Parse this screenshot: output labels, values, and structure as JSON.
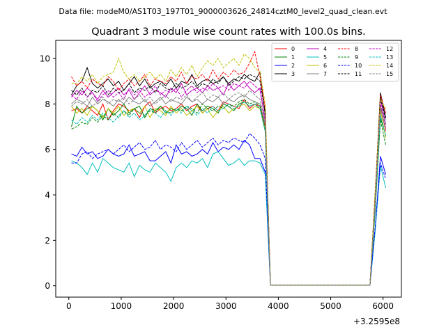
{
  "header": {
    "data_file": "Data file: modeM0/AS1T03_197T01_9000003626_24814cztM0_level2_quad_clean.evt"
  },
  "chart_data": {
    "type": "line",
    "title": "Quadrant 3 module wise count rates with 100.0s bins.",
    "xlabel": "",
    "ylabel": "",
    "x_offset_label": "+3.2595e8",
    "xlim": [
      -250,
      6350
    ],
    "ylim": [
      -0.5,
      10.8
    ],
    "x_ticks": [
      0,
      1000,
      2000,
      3000,
      4000,
      5000,
      6000
    ],
    "x_tick_labels": [
      "0",
      "1000",
      "2000",
      "3000",
      "4000",
      "5000",
      "6000"
    ],
    "y_ticks": [
      0,
      2,
      4,
      6,
      8,
      10
    ],
    "y_tick_labels": [
      "0",
      "2",
      "4",
      "6",
      "8",
      "10"
    ],
    "legend_position": "top-right",
    "x": [
      50,
      150,
      250,
      350,
      450,
      550,
      650,
      750,
      850,
      950,
      1050,
      1150,
      1250,
      1350,
      1450,
      1550,
      1650,
      1750,
      1850,
      1950,
      2050,
      2150,
      2250,
      2350,
      2450,
      2550,
      2650,
      2750,
      2850,
      2950,
      3050,
      3150,
      3250,
      3350,
      3450,
      3550,
      3650,
      3750,
      3850,
      3950,
      4050,
      4150,
      4250,
      4350,
      4450,
      4550,
      4650,
      4750,
      4850,
      4950,
      5050,
      5150,
      5250,
      5350,
      5450,
      5550,
      5650,
      5750,
      5850,
      5950,
      6050
    ],
    "series": [
      {
        "name": "0",
        "color": "#ff0000",
        "dash": "solid",
        "values": [
          7.7,
          7.8,
          7.6,
          7.9,
          7.7,
          7.5,
          8.0,
          7.3,
          7.7,
          8.0,
          7.9,
          7.7,
          7.8,
          7.4,
          7.9,
          8.1,
          7.6,
          7.8,
          7.9,
          7.7,
          7.8,
          8.0,
          7.7,
          7.9,
          8.0,
          7.6,
          7.8,
          7.9,
          7.7,
          8.1,
          8.0,
          7.9,
          7.8,
          8.2,
          7.8,
          8.0,
          7.9,
          7.0,
          0.03,
          0.03,
          0.03,
          0.03,
          0.03,
          0.03,
          0.03,
          0.03,
          0.03,
          0.03,
          0.03,
          0.03,
          0.03,
          0.03,
          0.03,
          0.03,
          0.03,
          0.03,
          0.03,
          0.03,
          3.5,
          7.9,
          6.8
        ]
      },
      {
        "name": "1",
        "color": "#008000",
        "dash": "solid",
        "values": [
          7.0,
          7.9,
          7.6,
          7.8,
          7.9,
          7.7,
          7.3,
          7.8,
          7.5,
          7.7,
          8.0,
          7.6,
          7.8,
          7.9,
          7.4,
          7.8,
          7.7,
          7.9,
          7.6,
          7.8,
          7.7,
          7.9,
          7.8,
          7.5,
          8.0,
          7.7,
          7.9,
          7.8,
          7.6,
          8.0,
          7.9,
          7.7,
          8.0,
          8.1,
          7.9,
          8.0,
          7.8,
          6.8,
          0.03,
          0.03,
          0.03,
          0.03,
          0.03,
          0.03,
          0.03,
          0.03,
          0.03,
          0.03,
          0.03,
          0.03,
          0.03,
          0.03,
          0.03,
          0.03,
          0.03,
          0.03,
          0.03,
          0.03,
          3.4,
          7.4,
          6.6
        ]
      },
      {
        "name": "2",
        "color": "#0000ff",
        "dash": "solid",
        "values": [
          5.8,
          5.7,
          6.1,
          5.8,
          5.9,
          5.6,
          5.7,
          6.0,
          5.8,
          5.7,
          5.8,
          6.2,
          5.7,
          5.8,
          5.9,
          5.5,
          5.5,
          5.7,
          5.9,
          5.4,
          6.2,
          5.8,
          5.9,
          5.7,
          5.8,
          6.0,
          5.8,
          6.3,
          5.9,
          6.1,
          6.0,
          6.2,
          6.0,
          6.4,
          6.2,
          5.6,
          5.6,
          5.0,
          0.03,
          0.03,
          0.03,
          0.03,
          0.03,
          0.03,
          0.03,
          0.03,
          0.03,
          0.03,
          0.03,
          0.03,
          0.03,
          0.03,
          0.03,
          0.03,
          0.03,
          0.03,
          0.03,
          0.03,
          2.5,
          5.7,
          4.9
        ]
      },
      {
        "name": "3",
        "color": "#000000",
        "dash": "solid",
        "values": [
          8.4,
          8.8,
          9.0,
          9.6,
          8.9,
          8.7,
          8.9,
          9.1,
          8.8,
          9.0,
          8.6,
          8.9,
          9.2,
          8.8,
          9.1,
          8.7,
          8.9,
          9.0,
          8.8,
          9.1,
          8.7,
          9.0,
          8.9,
          9.3,
          8.8,
          9.0,
          9.1,
          8.9,
          9.0,
          9.2,
          8.9,
          9.1,
          9.0,
          9.3,
          9.1,
          9.0,
          9.4,
          7.5,
          0.03,
          0.03,
          0.03,
          0.03,
          0.03,
          0.03,
          0.03,
          0.03,
          0.03,
          0.03,
          0.03,
          0.03,
          0.03,
          0.03,
          0.03,
          0.03,
          0.03,
          0.03,
          0.03,
          0.03,
          4.0,
          8.5,
          7.4
        ]
      },
      {
        "name": "4",
        "color": "#bf00bf",
        "dash": "solid",
        "values": [
          8.3,
          8.6,
          8.4,
          8.7,
          8.5,
          8.2,
          8.6,
          8.3,
          8.5,
          8.7,
          8.4,
          8.6,
          8.2,
          8.5,
          8.8,
          8.4,
          8.6,
          8.5,
          8.3,
          8.7,
          8.5,
          8.9,
          8.4,
          8.6,
          8.7,
          8.5,
          8.8,
          8.6,
          8.7,
          8.4,
          8.9,
          8.6,
          8.8,
          9.0,
          8.7,
          8.5,
          8.7,
          7.2,
          0.03,
          0.03,
          0.03,
          0.03,
          0.03,
          0.03,
          0.03,
          0.03,
          0.03,
          0.03,
          0.03,
          0.03,
          0.03,
          0.03,
          0.03,
          0.03,
          0.03,
          0.03,
          0.03,
          0.03,
          3.8,
          8.2,
          7.1
        ]
      },
      {
        "name": "5",
        "color": "#00bfbf",
        "dash": "solid",
        "values": [
          5.5,
          5.4,
          5.2,
          4.9,
          5.4,
          5.0,
          5.6,
          5.4,
          5.2,
          5.1,
          5.0,
          5.4,
          4.8,
          5.3,
          5.1,
          5.0,
          5.4,
          5.2,
          5.0,
          4.6,
          5.2,
          5.4,
          5.2,
          5.5,
          5.4,
          5.6,
          5.2,
          5.8,
          5.9,
          5.6,
          5.3,
          5.4,
          5.6,
          5.3,
          5.5,
          5.5,
          5.4,
          4.9,
          0.03,
          0.03,
          0.03,
          0.03,
          0.03,
          0.03,
          0.03,
          0.03,
          0.03,
          0.03,
          0.03,
          0.03,
          0.03,
          0.03,
          0.03,
          0.03,
          0.03,
          0.03,
          0.03,
          0.03,
          2.4,
          5.3,
          4.3
        ]
      },
      {
        "name": "6",
        "color": "#bfbf00",
        "dash": "solid",
        "values": [
          7.9,
          7.6,
          7.8,
          7.5,
          7.9,
          7.7,
          7.4,
          7.8,
          7.6,
          7.9,
          7.5,
          7.7,
          7.8,
          7.6,
          7.9,
          7.4,
          7.8,
          7.7,
          7.5,
          7.9,
          7.6,
          7.8,
          7.5,
          7.7,
          7.9,
          7.6,
          7.8,
          7.4,
          7.7,
          7.9,
          7.6,
          7.8,
          7.9,
          8.0,
          7.7,
          7.9,
          7.8,
          6.9,
          0.03,
          0.03,
          0.03,
          0.03,
          0.03,
          0.03,
          0.03,
          0.03,
          0.03,
          0.03,
          0.03,
          0.03,
          0.03,
          0.03,
          0.03,
          0.03,
          0.03,
          0.03,
          0.03,
          0.03,
          3.6,
          7.7,
          6.5
        ]
      },
      {
        "name": "7",
        "color": "#808080",
        "dash": "solid",
        "values": [
          8.0,
          8.2,
          8.1,
          7.9,
          8.3,
          8.0,
          8.2,
          8.1,
          7.9,
          8.2,
          8.0,
          8.3,
          8.1,
          8.0,
          8.2,
          7.9,
          8.1,
          8.3,
          8.0,
          8.2,
          8.1,
          8.0,
          8.3,
          8.1,
          8.2,
          8.0,
          8.2,
          8.1,
          8.3,
          8.0,
          8.2,
          8.1,
          8.3,
          8.4,
          8.2,
          8.1,
          8.0,
          7.1,
          0.03,
          0.03,
          0.03,
          0.03,
          0.03,
          0.03,
          0.03,
          0.03,
          0.03,
          0.03,
          0.03,
          0.03,
          0.03,
          0.03,
          0.03,
          0.03,
          0.03,
          0.03,
          0.03,
          0.03,
          3.7,
          7.8,
          6.9
        ]
      },
      {
        "name": "8",
        "color": "#ff0000",
        "dash": "dashed",
        "values": [
          9.2,
          8.8,
          9.0,
          8.7,
          9.1,
          8.9,
          8.8,
          9.2,
          9.0,
          8.6,
          8.9,
          9.1,
          8.8,
          9.0,
          9.3,
          8.8,
          9.1,
          9.0,
          8.9,
          9.2,
          9.0,
          9.4,
          8.9,
          9.2,
          9.1,
          9.3,
          9.0,
          9.5,
          9.1,
          9.4,
          9.2,
          9.5,
          9.3,
          9.4,
          9.8,
          10.3,
          9.2,
          7.8,
          0.03,
          0.03,
          0.03,
          0.03,
          0.03,
          0.03,
          0.03,
          0.03,
          0.03,
          0.03,
          0.03,
          0.03,
          0.03,
          0.03,
          0.03,
          0.03,
          0.03,
          0.03,
          0.03,
          0.03,
          4.1,
          8.4,
          7.6
        ]
      },
      {
        "name": "9",
        "color": "#008000",
        "dash": "dashed",
        "values": [
          6.9,
          7.0,
          7.2,
          7.1,
          7.4,
          7.2,
          7.5,
          7.3,
          7.6,
          7.4,
          7.7,
          7.5,
          7.8,
          7.6,
          7.5,
          7.7,
          7.6,
          7.9,
          7.7,
          7.6,
          7.8,
          7.7,
          7.9,
          7.8,
          7.6,
          8.0,
          7.8,
          7.7,
          7.9,
          7.8,
          8.0,
          7.9,
          8.1,
          8.2,
          8.0,
          8.1,
          7.9,
          6.9,
          0.03,
          0.03,
          0.03,
          0.03,
          0.03,
          0.03,
          0.03,
          0.03,
          0.03,
          0.03,
          0.03,
          0.03,
          0.03,
          0.03,
          0.03,
          0.03,
          0.03,
          0.03,
          0.03,
          0.03,
          3.3,
          7.3,
          6.2
        ]
      },
      {
        "name": "10",
        "color": "#0000ff",
        "dash": "dashed",
        "values": [
          5.4,
          5.4,
          5.8,
          5.9,
          5.6,
          5.8,
          5.9,
          6.0,
          5.8,
          6.0,
          6.2,
          5.9,
          6.1,
          6.3,
          6.0,
          6.1,
          6.4,
          6.0,
          6.2,
          6.1,
          5.9,
          6.3,
          6.0,
          6.2,
          6.4,
          6.1,
          6.3,
          6.5,
          6.2,
          6.4,
          6.3,
          6.5,
          6.4,
          6.3,
          6.7,
          6.5,
          6.2,
          5.6,
          0.03,
          0.03,
          0.03,
          0.03,
          0.03,
          0.03,
          0.03,
          0.03,
          0.03,
          0.03,
          0.03,
          0.03,
          0.03,
          0.03,
          0.03,
          0.03,
          0.03,
          0.03,
          0.03,
          0.03,
          2.6,
          5.4,
          4.7
        ]
      },
      {
        "name": "11",
        "color": "#000000",
        "dash": "dashed",
        "values": [
          8.6,
          8.4,
          8.7,
          8.3,
          8.6,
          8.5,
          8.8,
          8.4,
          8.7,
          8.5,
          8.6,
          8.9,
          8.5,
          8.7,
          8.6,
          8.8,
          8.5,
          8.9,
          8.7,
          8.6,
          8.9,
          8.7,
          8.8,
          9.0,
          8.7,
          8.9,
          8.8,
          9.1,
          8.9,
          9.2,
          8.8,
          9.0,
          9.2,
          9.1,
          9.3,
          9.2,
          9.0,
          7.6,
          0.03,
          0.03,
          0.03,
          0.03,
          0.03,
          0.03,
          0.03,
          0.03,
          0.03,
          0.03,
          0.03,
          0.03,
          0.03,
          0.03,
          0.03,
          0.03,
          0.03,
          0.03,
          0.03,
          0.03,
          4.0,
          8.3,
          7.3
        ]
      },
      {
        "name": "12",
        "color": "#bf00bf",
        "dash": "dashed",
        "values": [
          8.4,
          8.2,
          8.6,
          8.3,
          8.5,
          8.1,
          8.4,
          8.6,
          8.3,
          8.5,
          8.2,
          8.7,
          8.4,
          8.6,
          8.3,
          8.5,
          8.8,
          8.4,
          8.6,
          8.5,
          8.7,
          8.3,
          8.6,
          8.8,
          8.5,
          8.7,
          8.6,
          8.9,
          8.7,
          8.8,
          8.6,
          8.9,
          8.8,
          8.7,
          9.0,
          8.8,
          8.6,
          7.3,
          0.03,
          0.03,
          0.03,
          0.03,
          0.03,
          0.03,
          0.03,
          0.03,
          0.03,
          0.03,
          0.03,
          0.03,
          0.03,
          0.03,
          0.03,
          0.03,
          0.03,
          0.03,
          0.03,
          0.03,
          3.9,
          8.0,
          7.0
        ]
      },
      {
        "name": "13",
        "color": "#00bfbf",
        "dash": "dashed",
        "values": [
          7.3,
          7.1,
          7.4,
          7.2,
          7.5,
          7.3,
          7.6,
          7.4,
          7.2,
          7.5,
          7.7,
          7.4,
          7.6,
          7.3,
          7.5,
          7.8,
          7.6,
          7.4,
          7.7,
          7.5,
          7.8,
          7.6,
          7.9,
          7.7,
          7.5,
          7.8,
          7.6,
          7.9,
          7.7,
          7.8,
          8.0,
          7.8,
          7.9,
          8.1,
          7.9,
          8.0,
          7.8,
          6.8,
          0.03,
          0.03,
          0.03,
          0.03,
          0.03,
          0.03,
          0.03,
          0.03,
          0.03,
          0.03,
          0.03,
          0.03,
          0.03,
          0.03,
          0.03,
          0.03,
          0.03,
          0.03,
          0.03,
          0.03,
          3.5,
          7.5,
          6.6
        ]
      },
      {
        "name": "14",
        "color": "#bfbf00",
        "dash": "dashed",
        "values": [
          8.9,
          8.9,
          9.2,
          9.0,
          9.3,
          8.9,
          9.2,
          9.3,
          9.4,
          10.0,
          9.4,
          9.1,
          9.3,
          9.0,
          9.2,
          9.4,
          9.1,
          9.3,
          9.0,
          9.5,
          9.2,
          9.6,
          9.3,
          9.7,
          9.2,
          9.6,
          9.9,
          9.7,
          10.0,
          9.6,
          9.8,
          10.0,
          9.7,
          10.2,
          10.0,
          9.6,
          9.4,
          8.0,
          0.03,
          0.03,
          0.03,
          0.03,
          0.03,
          0.03,
          0.03,
          0.03,
          0.03,
          0.03,
          0.03,
          0.03,
          0.03,
          0.03,
          0.03,
          0.03,
          0.03,
          0.03,
          0.03,
          0.03,
          4.2,
          8.2,
          7.8
        ]
      },
      {
        "name": "15",
        "color": "#808080",
        "dash": "dashed",
        "values": [
          7.9,
          8.1,
          8.0,
          8.2,
          7.9,
          8.1,
          8.3,
          8.0,
          8.2,
          8.1,
          8.3,
          8.0,
          8.2,
          8.4,
          8.1,
          8.3,
          8.0,
          8.2,
          8.4,
          8.1,
          8.3,
          8.2,
          8.4,
          8.1,
          8.3,
          8.5,
          8.2,
          8.4,
          8.3,
          8.5,
          8.2,
          8.4,
          8.5,
          8.3,
          8.6,
          8.4,
          8.2,
          7.2,
          0.03,
          0.03,
          0.03,
          0.03,
          0.03,
          0.03,
          0.03,
          0.03,
          0.03,
          0.03,
          0.03,
          0.03,
          0.03,
          0.03,
          0.03,
          0.03,
          0.03,
          0.03,
          0.03,
          0.03,
          3.7,
          7.9,
          7.1
        ]
      }
    ]
  }
}
